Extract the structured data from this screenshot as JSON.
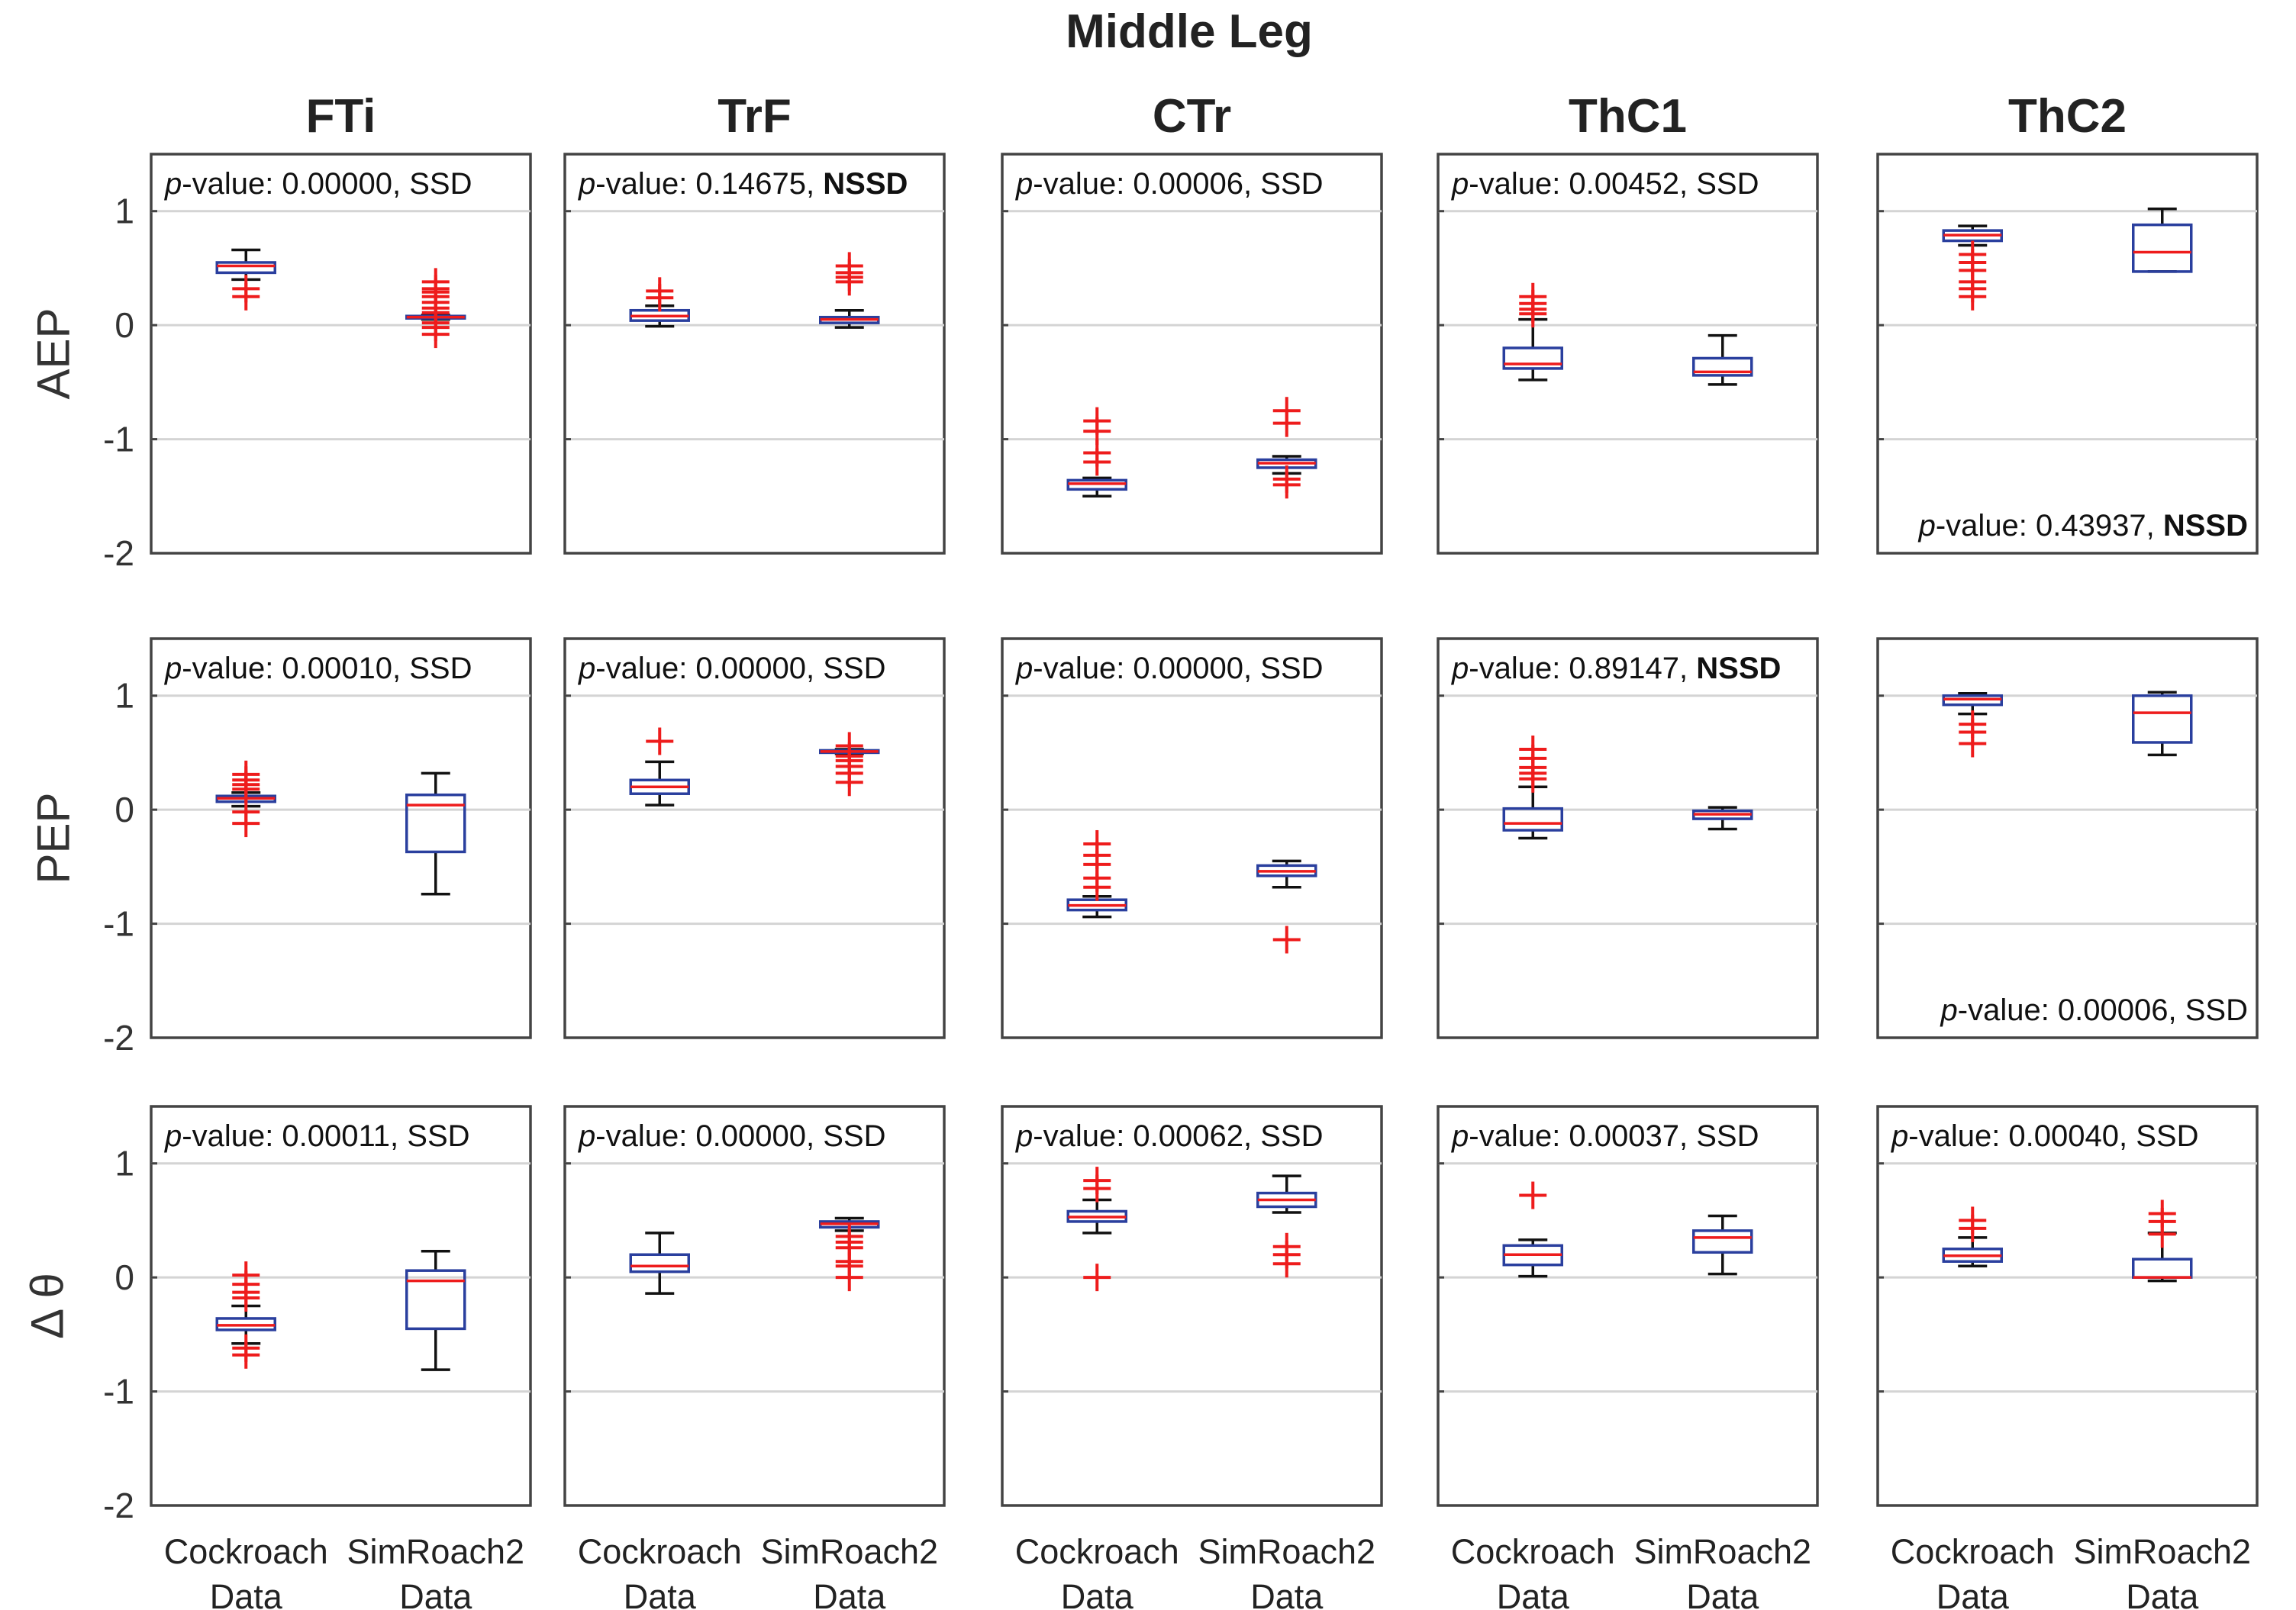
{
  "title": "Middle Leg",
  "colors": {
    "box": "#2a3f9e",
    "median": "#ee1c1c",
    "outlier": "#ee1c1c",
    "whisker": "#111111",
    "grid": "#d4d4d4"
  },
  "chart_data": {
    "type": "boxplot",
    "columns": [
      "FTi",
      "TrF",
      "CTr",
      "ThC1",
      "ThC2"
    ],
    "rows": [
      "AEP",
      "PEP",
      "Δ θ"
    ],
    "categories": [
      "Cockroach Data",
      "SimRoach2 Data"
    ],
    "category_lines": [
      [
        "Cockroach",
        "Data"
      ],
      [
        "SimRoach2",
        "Data"
      ]
    ],
    "ylim": [
      -2,
      1.5
    ],
    "yticks": [
      1,
      0,
      -1,
      -2
    ],
    "ytick_labels": [
      "1",
      "0",
      "-1",
      "-2"
    ],
    "grid": "horizontal",
    "panels": [
      [
        {
          "pvalue": "0.00000",
          "verdict": "SSD",
          "note_position": "top",
          "boxes": [
            {
              "q1": 0.46,
              "median": 0.52,
              "q3": 0.55,
              "wlo": 0.4,
              "whi": 0.66,
              "outliers": [
                0.32,
                0.25
              ]
            },
            {
              "q1": 0.06,
              "median": 0.07,
              "q3": 0.08,
              "wlo": 0.05,
              "whi": 0.09,
              "outliers": [
                0.38,
                0.32,
                0.29,
                0.25,
                0.2,
                0.15,
                0.11,
                0.02,
                -0.02,
                -0.08
              ]
            }
          ]
        },
        {
          "pvalue": "0.14675",
          "verdict": "NSSD",
          "note_position": "top",
          "boxes": [
            {
              "q1": 0.04,
              "median": 0.08,
              "q3": 0.13,
              "wlo": -0.01,
              "whi": 0.17,
              "outliers": [
                0.3,
                0.24
              ]
            },
            {
              "q1": 0.02,
              "median": 0.05,
              "q3": 0.07,
              "wlo": -0.02,
              "whi": 0.13,
              "outliers": [
                0.52,
                0.46,
                0.42,
                0.38
              ]
            }
          ]
        },
        {
          "pvalue": "0.00006",
          "verdict": "SSD",
          "note_position": "top",
          "boxes": [
            {
              "q1": -1.44,
              "median": -1.39,
              "q3": -1.36,
              "wlo": -1.5,
              "whi": -1.34,
              "outliers": [
                -0.84,
                -0.93,
                -1.12,
                -1.2
              ]
            },
            {
              "q1": -1.25,
              "median": -1.21,
              "q3": -1.18,
              "wlo": -1.3,
              "whi": -1.15,
              "outliers": [
                -0.75,
                -0.86,
                -1.35,
                -1.4
              ]
            }
          ]
        },
        {
          "pvalue": "0.00452",
          "verdict": "SSD",
          "note_position": "top",
          "boxes": [
            {
              "q1": -0.38,
              "median": -0.34,
              "q3": -0.2,
              "wlo": -0.48,
              "whi": 0.05,
              "outliers": [
                0.25,
                0.19,
                0.14,
                0.1
              ]
            },
            {
              "q1": -0.44,
              "median": -0.41,
              "q3": -0.29,
              "wlo": -0.52,
              "whi": -0.09,
              "outliers": []
            }
          ]
        },
        {
          "pvalue": "0.43937",
          "verdict": "NSSD",
          "note_position": "bottom",
          "boxes": [
            {
              "q1": 0.74,
              "median": 0.79,
              "q3": 0.83,
              "wlo": 0.7,
              "whi": 0.87,
              "outliers": [
                0.62,
                0.55,
                0.48,
                0.38,
                0.32,
                0.25
              ]
            },
            {
              "q1": 0.47,
              "median": 0.64,
              "q3": 0.88,
              "wlo": 0.47,
              "whi": 1.02,
              "outliers": []
            }
          ]
        }
      ],
      [
        {
          "pvalue": "0.00010",
          "verdict": "SSD",
          "note_position": "top",
          "boxes": [
            {
              "q1": 0.07,
              "median": 0.1,
              "q3": 0.12,
              "wlo": 0.03,
              "whi": 0.15,
              "outliers": [
                0.31,
                0.26,
                0.22,
                0.18,
                -0.02,
                -0.12
              ]
            },
            {
              "q1": -0.37,
              "median": 0.04,
              "q3": 0.13,
              "wlo": -0.74,
              "whi": 0.32,
              "outliers": []
            }
          ]
        },
        {
          "pvalue": "0.00000",
          "verdict": "SSD",
          "note_position": "top",
          "boxes": [
            {
              "q1": 0.14,
              "median": 0.2,
              "q3": 0.26,
              "wlo": 0.04,
              "whi": 0.42,
              "outliers": [
                0.6
              ]
            },
            {
              "q1": 0.5,
              "median": 0.51,
              "q3": 0.52,
              "wlo": 0.49,
              "whi": 0.53,
              "outliers": [
                0.56,
                0.47,
                0.43,
                0.38,
                0.32,
                0.24
              ]
            }
          ]
        },
        {
          "pvalue": "0.00000",
          "verdict": "SSD",
          "note_position": "top",
          "boxes": [
            {
              "q1": -0.88,
              "median": -0.84,
              "q3": -0.79,
              "wlo": -0.94,
              "whi": -0.76,
              "outliers": [
                -0.3,
                -0.4,
                -0.48,
                -0.6,
                -0.68
              ]
            },
            {
              "q1": -0.58,
              "median": -0.54,
              "q3": -0.49,
              "wlo": -0.68,
              "whi": -0.45,
              "outliers": [
                -1.14
              ]
            }
          ]
        },
        {
          "pvalue": "0.89147",
          "verdict": "NSSD",
          "note_position": "top",
          "boxes": [
            {
              "q1": -0.18,
              "median": -0.12,
              "q3": 0.01,
              "wlo": -0.25,
              "whi": 0.2,
              "outliers": [
                0.53,
                0.45,
                0.37,
                0.32,
                0.27
              ]
            },
            {
              "q1": -0.08,
              "median": -0.04,
              "q3": -0.01,
              "wlo": -0.17,
              "whi": 0.02,
              "outliers": []
            }
          ]
        },
        {
          "pvalue": "0.00006",
          "verdict": "SSD",
          "note_position": "bottom",
          "boxes": [
            {
              "q1": 0.92,
              "median": 0.97,
              "q3": 1.0,
              "wlo": 0.84,
              "whi": 1.02,
              "outliers": [
                0.75,
                0.68,
                0.58
              ]
            },
            {
              "q1": 0.59,
              "median": 0.85,
              "q3": 1.0,
              "wlo": 0.48,
              "whi": 1.03,
              "outliers": []
            }
          ]
        }
      ],
      [
        {
          "pvalue": "0.00011",
          "verdict": "SSD",
          "note_position": "top",
          "boxes": [
            {
              "q1": -0.46,
              "median": -0.42,
              "q3": -0.36,
              "wlo": -0.58,
              "whi": -0.25,
              "outliers": [
                0.02,
                -0.06,
                -0.13,
                -0.18,
                -0.62,
                -0.68
              ]
            },
            {
              "q1": -0.45,
              "median": -0.03,
              "q3": 0.06,
              "wlo": -0.81,
              "whi": 0.23,
              "outliers": []
            }
          ]
        },
        {
          "pvalue": "0.00000",
          "verdict": "SSD",
          "note_position": "top",
          "boxes": [
            {
              "q1": 0.05,
              "median": 0.1,
              "q3": 0.2,
              "wlo": -0.14,
              "whi": 0.39,
              "outliers": []
            },
            {
              "q1": 0.44,
              "median": 0.47,
              "q3": 0.49,
              "wlo": 0.41,
              "whi": 0.52,
              "outliers": [
                0.36,
                0.31,
                0.26,
                0.14,
                0.1,
                0.0
              ]
            }
          ]
        },
        {
          "pvalue": "0.00062",
          "verdict": "SSD",
          "note_position": "top",
          "boxes": [
            {
              "q1": 0.49,
              "median": 0.53,
              "q3": 0.58,
              "wlo": 0.39,
              "whi": 0.68,
              "outliers": [
                0.85,
                0.78,
                0.0
              ]
            },
            {
              "q1": 0.62,
              "median": 0.68,
              "q3": 0.74,
              "wlo": 0.57,
              "whi": 0.89,
              "outliers": [
                0.27,
                0.2,
                0.12
              ]
            }
          ]
        },
        {
          "pvalue": "0.00037",
          "verdict": "SSD",
          "note_position": "top",
          "boxes": [
            {
              "q1": 0.11,
              "median": 0.2,
              "q3": 0.28,
              "wlo": 0.01,
              "whi": 0.33,
              "outliers": [
                0.72
              ]
            },
            {
              "q1": 0.22,
              "median": 0.35,
              "q3": 0.41,
              "wlo": 0.03,
              "whi": 0.54,
              "outliers": []
            }
          ]
        },
        {
          "pvalue": "0.00040",
          "verdict": "SSD",
          "note_position": "top",
          "boxes": [
            {
              "q1": 0.14,
              "median": 0.19,
              "q3": 0.25,
              "wlo": 0.1,
              "whi": 0.35,
              "outliers": [
                0.5,
                0.43
              ]
            },
            {
              "q1": 0.0,
              "median": 0.0,
              "q3": 0.16,
              "wlo": -0.03,
              "whi": 0.39,
              "outliers": [
                0.56,
                0.49,
                0.38
              ]
            }
          ]
        }
      ]
    ]
  }
}
